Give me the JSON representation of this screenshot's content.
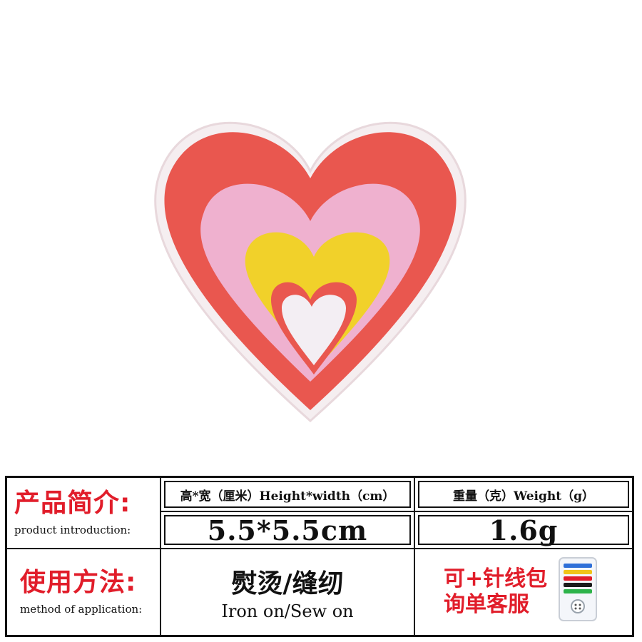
{
  "colors": {
    "accent_red": "#e11d2a",
    "heart_outer": "#e9574f",
    "heart_pink": "#efb1cf",
    "heart_yellow": "#f1d12a",
    "heart_inner": "#f3eef3",
    "edge": "#f5eef0"
  },
  "product": {
    "title_cn": "产品简介:",
    "title_en": "product introduction:"
  },
  "size": {
    "header": "高*宽（厘米）Height*width（cm）",
    "value": "5.5*5.5cm"
  },
  "weight": {
    "header": "重量（克）Weight（g）",
    "value": "1.6g"
  },
  "method": {
    "title_cn": "使用方法:",
    "title_en": "method of application:",
    "value_cn": "熨烫/缝纫",
    "value_en": "Iron on/Sew on"
  },
  "extra": {
    "line1": "可+针线包",
    "line2": "询单客服",
    "icon": "sewing-kit-icon"
  }
}
